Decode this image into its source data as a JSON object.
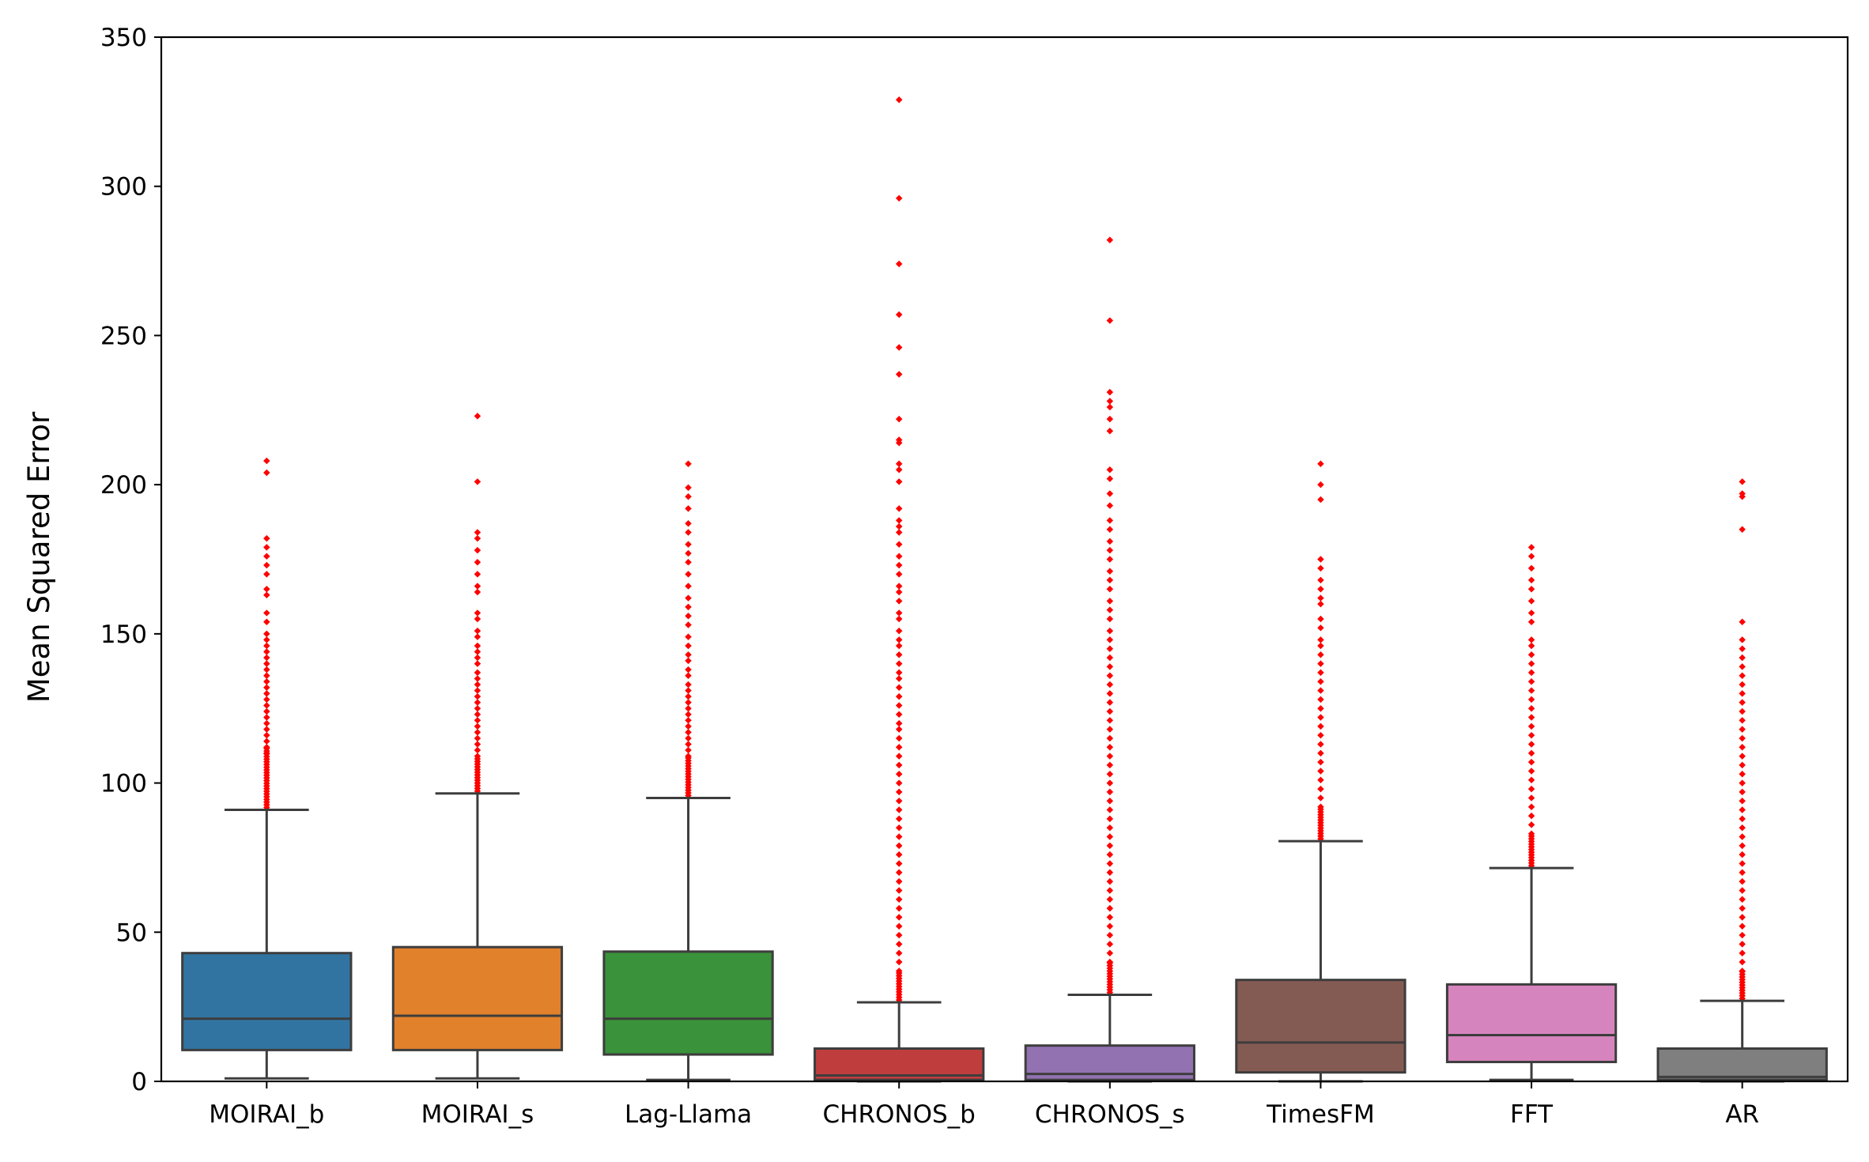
{
  "chart_data": {
    "type": "box",
    "xlabel": "",
    "ylabel": "Mean Squared Error",
    "ylim": [
      0,
      350
    ],
    "yticks": [
      0,
      50,
      100,
      150,
      200,
      250,
      300,
      350
    ],
    "ytick_labels": [
      "0",
      "50",
      "100",
      "150",
      "200",
      "250",
      "300",
      "350"
    ],
    "grid": false,
    "outlier_color": "#ff0000",
    "box_edge_color": "#3d3d3d",
    "categories": [
      "MOIRAI_b",
      "MOIRAI_s",
      "Lag-Llama",
      "CHRONOS_b",
      "CHRONOS_s",
      "TimesFM",
      "FFT",
      "AR"
    ],
    "boxes": [
      {
        "name": "MOIRAI_b",
        "color": "#3274a1",
        "whisker_low": 1,
        "q1": 10.5,
        "median": 21,
        "q3": 43,
        "whisker_high": 91,
        "outliers_extreme": [
          208,
          204,
          182,
          179,
          176,
          173,
          170,
          165,
          163,
          157,
          154,
          150,
          148,
          146,
          144,
          142,
          140,
          138,
          136,
          134,
          132,
          130,
          128,
          126,
          124,
          122,
          120,
          118,
          116,
          114,
          112,
          110
        ],
        "outlier_dense_range": [
          91,
          112
        ]
      },
      {
        "name": "MOIRAI_s",
        "color": "#e1812c",
        "whisker_low": 1,
        "q1": 10.5,
        "median": 22,
        "q3": 45,
        "whisker_high": 96.5,
        "outliers_extreme": [
          223,
          201,
          184,
          182,
          178,
          174,
          170,
          166,
          164,
          157,
          155,
          151,
          149,
          146,
          144,
          142,
          140,
          137,
          135,
          133,
          131,
          129,
          127,
          125,
          123,
          121,
          119,
          117,
          115,
          113,
          111,
          109
        ],
        "outlier_dense_range": [
          96.5,
          109
        ]
      },
      {
        "name": "Lag-Llama",
        "color": "#3a923a",
        "whisker_low": 0.5,
        "q1": 9,
        "median": 21,
        "q3": 43.5,
        "whisker_high": 95,
        "outliers_extreme": [
          207,
          199,
          196,
          192,
          187,
          184,
          180,
          177,
          174,
          170,
          166,
          162,
          159,
          156,
          153,
          149,
          146,
          143,
          141,
          138,
          136,
          133,
          131,
          129,
          127,
          125,
          123,
          121,
          119,
          117,
          115,
          113,
          111,
          109
        ],
        "outlier_dense_range": [
          95,
          109
        ]
      },
      {
        "name": "CHRONOS_b",
        "color": "#c03d3e",
        "whisker_low": 0,
        "q1": 0.5,
        "median": 2,
        "q3": 11,
        "whisker_high": 26.5,
        "outliers_extreme": [
          329,
          296,
          274,
          257,
          246,
          237,
          222,
          215,
          214,
          207,
          205,
          201,
          192,
          188,
          186,
          184,
          180,
          176,
          173,
          170,
          166,
          164,
          161,
          157,
          155,
          151,
          148,
          146,
          143,
          140,
          137,
          135,
          132,
          129,
          126,
          123,
          120,
          118,
          115,
          112,
          109,
          106,
          103,
          100,
          97,
          94,
          91,
          88,
          85,
          82,
          79,
          76,
          73,
          70,
          67,
          64,
          61,
          58,
          55,
          52,
          49,
          46,
          43,
          40,
          37
        ],
        "outlier_dense_range": [
          26.5,
          37
        ]
      },
      {
        "name": "CHRONOS_s",
        "color": "#9372b2",
        "whisker_low": 0,
        "q1": 0.5,
        "median": 2.5,
        "q3": 12,
        "whisker_high": 29,
        "outliers_extreme": [
          282,
          255,
          231,
          228,
          226,
          222,
          218,
          205,
          202,
          197,
          193,
          188,
          185,
          181,
          178,
          175,
          171,
          168,
          165,
          161,
          158,
          155,
          151,
          148,
          145,
          142,
          139,
          136,
          133,
          130,
          127,
          124,
          121,
          118,
          115,
          112,
          109,
          106,
          103,
          100,
          97,
          94,
          91,
          88,
          85,
          82,
          79,
          76,
          73,
          70,
          67,
          64,
          61,
          58,
          55,
          52,
          49,
          46,
          43,
          40
        ],
        "outlier_dense_range": [
          29,
          40
        ]
      },
      {
        "name": "TimesFM",
        "color": "#845b53",
        "whisker_low": 0,
        "q1": 3,
        "median": 13,
        "q3": 34,
        "whisker_high": 80.5,
        "outliers_extreme": [
          207,
          200,
          195,
          175,
          172,
          168,
          165,
          162,
          160,
          155,
          152,
          148,
          146,
          143,
          140,
          137,
          134,
          131,
          128,
          125,
          122,
          119,
          116,
          113,
          110,
          107,
          104,
          101,
          98,
          95,
          92
        ],
        "outlier_dense_range": [
          80.5,
          92
        ]
      },
      {
        "name": "FFT",
        "color": "#d684bd",
        "whisker_low": 0.5,
        "q1": 6.5,
        "median": 15.5,
        "q3": 32.5,
        "whisker_high": 71.5,
        "outliers_extreme": [
          179,
          176,
          172,
          168,
          165,
          161,
          157,
          154,
          148,
          146,
          143,
          140,
          137,
          134,
          131,
          128,
          125,
          122,
          119,
          116,
          113,
          110,
          107,
          104,
          101,
          98,
          95,
          92,
          89,
          86,
          83
        ],
        "outlier_dense_range": [
          71.5,
          83
        ]
      },
      {
        "name": "AR",
        "color": "#7f7f7f",
        "whisker_low": 0,
        "q1": 0.5,
        "median": 1.5,
        "q3": 11,
        "whisker_high": 27,
        "outliers_extreme": [
          201,
          197,
          196,
          185,
          154,
          148,
          145,
          142,
          139,
          136,
          133,
          130,
          127,
          124,
          121,
          118,
          115,
          112,
          109,
          106,
          103,
          100,
          97,
          94,
          91,
          88,
          85,
          82,
          79,
          76,
          73,
          70,
          67,
          64,
          61,
          58,
          55,
          52,
          49,
          46,
          43,
          40,
          37
        ],
        "outlier_dense_range": [
          27,
          37
        ]
      }
    ]
  }
}
